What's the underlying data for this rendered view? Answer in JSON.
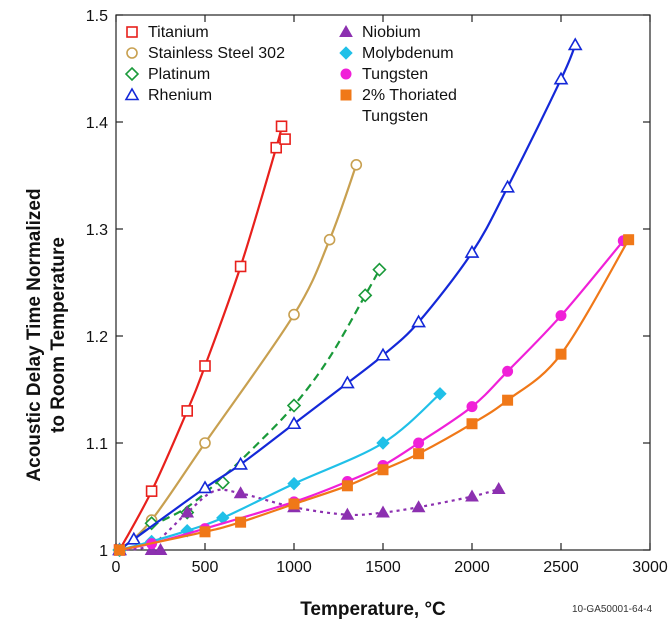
{
  "chart_data": {
    "type": "line",
    "xlabel": "Temperature, °C",
    "ylabel": [
      "Acoustic Delay Time Normalized",
      "to Room Temperature"
    ],
    "xlim": [
      0,
      3000
    ],
    "ylim": [
      1.0,
      1.5
    ],
    "xticks": [
      0,
      500,
      1000,
      1500,
      2000,
      2500,
      3000
    ],
    "yticks": [
      1,
      1.1,
      1.2,
      1.3,
      1.4,
      1.5
    ],
    "xtick_labels": [
      "0",
      "500",
      "1000",
      "1500",
      "2000",
      "2500",
      "3000"
    ],
    "ytick_labels": [
      "1",
      "1.1",
      "1.2",
      "1.3",
      "1.4",
      "1.5"
    ],
    "grid": false,
    "legend_position": "top-left",
    "figure_code": "10-GA50001-64-4",
    "series": [
      {
        "name": "Titanium",
        "color": "#e8201c",
        "marker": "square-open",
        "line": "solid",
        "points": [
          [
            20,
            1.0
          ],
          [
            200,
            1.055
          ],
          [
            400,
            1.13
          ],
          [
            500,
            1.172
          ],
          [
            700,
            1.265
          ],
          [
            900,
            1.376
          ],
          [
            930,
            1.396
          ],
          [
            950,
            1.384
          ]
        ],
        "curve": [
          [
            20,
            1.0
          ],
          [
            200,
            1.055
          ],
          [
            400,
            1.13
          ],
          [
            500,
            1.172
          ],
          [
            700,
            1.265
          ],
          [
            900,
            1.376
          ],
          [
            930,
            1.395
          ]
        ]
      },
      {
        "name": "Stainless Steel 302",
        "color": "#c8a050",
        "marker": "circle-open",
        "line": "solid",
        "points": [
          [
            20,
            1.0
          ],
          [
            200,
            1.028
          ],
          [
            500,
            1.1
          ],
          [
            1000,
            1.22
          ],
          [
            1200,
            1.29
          ],
          [
            1350,
            1.36
          ]
        ],
        "curve": [
          [
            20,
            1.0
          ],
          [
            200,
            1.028
          ],
          [
            500,
            1.1
          ],
          [
            1000,
            1.22
          ],
          [
            1200,
            1.29
          ],
          [
            1350,
            1.36
          ]
        ]
      },
      {
        "name": "Platinum",
        "color": "#1a9a3a",
        "marker": "diamond-open",
        "line": "dashed",
        "points": [
          [
            20,
            1.0
          ],
          [
            200,
            1.025
          ],
          [
            400,
            1.035
          ],
          [
            600,
            1.063
          ],
          [
            1000,
            1.135
          ],
          [
            1400,
            1.238
          ],
          [
            1480,
            1.262
          ]
        ],
        "curve": [
          [
            20,
            1.0
          ],
          [
            200,
            1.022
          ],
          [
            400,
            1.04
          ],
          [
            600,
            1.068
          ],
          [
            800,
            1.1
          ],
          [
            1000,
            1.135
          ],
          [
            1200,
            1.18
          ],
          [
            1400,
            1.238
          ],
          [
            1480,
            1.262
          ]
        ]
      },
      {
        "name": "Rhenium",
        "color": "#1428d8",
        "marker": "triangle-open",
        "line": "solid",
        "points": [
          [
            20,
            1.0
          ],
          [
            100,
            1.01
          ],
          [
            500,
            1.058
          ],
          [
            700,
            1.08
          ],
          [
            1000,
            1.118
          ],
          [
            1300,
            1.156
          ],
          [
            1500,
            1.182
          ],
          [
            1700,
            1.213
          ],
          [
            2000,
            1.278
          ],
          [
            2200,
            1.339
          ],
          [
            2500,
            1.44
          ],
          [
            2580,
            1.472
          ]
        ],
        "curve": [
          [
            20,
            1.0
          ],
          [
            100,
            1.01
          ],
          [
            500,
            1.058
          ],
          [
            700,
            1.08
          ],
          [
            1000,
            1.118
          ],
          [
            1300,
            1.156
          ],
          [
            1500,
            1.182
          ],
          [
            1700,
            1.213
          ],
          [
            2000,
            1.278
          ],
          [
            2200,
            1.339
          ],
          [
            2500,
            1.44
          ],
          [
            2580,
            1.472
          ]
        ]
      },
      {
        "name": "Niobium",
        "color": "#8c30b0",
        "marker": "triangle-filled",
        "line": "dotted",
        "points": [
          [
            20,
            1.0
          ],
          [
            200,
            1.0
          ],
          [
            250,
            1.0
          ],
          [
            400,
            1.035
          ],
          [
            700,
            1.053
          ],
          [
            1000,
            1.04
          ],
          [
            1300,
            1.033
          ],
          [
            1500,
            1.035
          ],
          [
            1700,
            1.04
          ],
          [
            2000,
            1.05
          ],
          [
            2150,
            1.057
          ]
        ],
        "curve": [
          [
            20,
            1.0
          ],
          [
            200,
            1.005
          ],
          [
            400,
            1.035
          ],
          [
            550,
            1.055
          ],
          [
            700,
            1.053
          ],
          [
            1000,
            1.04
          ],
          [
            1300,
            1.033
          ],
          [
            1500,
            1.035
          ],
          [
            1700,
            1.04
          ],
          [
            2000,
            1.05
          ],
          [
            2150,
            1.057
          ]
        ]
      },
      {
        "name": "Molybdenum",
        "color": "#20c0e8",
        "marker": "diamond-filled",
        "line": "solid",
        "points": [
          [
            20,
            1.0
          ],
          [
            200,
            1.008
          ],
          [
            400,
            1.018
          ],
          [
            600,
            1.03
          ],
          [
            1000,
            1.062
          ],
          [
            1500,
            1.1
          ],
          [
            1820,
            1.146
          ]
        ],
        "curve": [
          [
            20,
            1.0
          ],
          [
            200,
            1.008
          ],
          [
            400,
            1.018
          ],
          [
            600,
            1.03
          ],
          [
            1000,
            1.062
          ],
          [
            1500,
            1.1
          ],
          [
            1820,
            1.146
          ]
        ]
      },
      {
        "name": "Tungsten",
        "color": "#f020d8",
        "marker": "circle-filled",
        "line": "solid",
        "points": [
          [
            20,
            1.0
          ],
          [
            200,
            1.006
          ],
          [
            500,
            1.02
          ],
          [
            1000,
            1.045
          ],
          [
            1300,
            1.064
          ],
          [
            1500,
            1.079
          ],
          [
            1700,
            1.1
          ],
          [
            2000,
            1.134
          ],
          [
            2200,
            1.167
          ],
          [
            2500,
            1.219
          ],
          [
            2850,
            1.289
          ]
        ],
        "curve": [
          [
            20,
            1.0
          ],
          [
            200,
            1.006
          ],
          [
            500,
            1.02
          ],
          [
            1000,
            1.045
          ],
          [
            1300,
            1.064
          ],
          [
            1500,
            1.079
          ],
          [
            1700,
            1.1
          ],
          [
            2000,
            1.134
          ],
          [
            2200,
            1.167
          ],
          [
            2500,
            1.219
          ],
          [
            2850,
            1.289
          ]
        ]
      },
      {
        "name": "2% Thoriated Tungsten",
        "color": "#f07818",
        "marker": "square-filled",
        "line": "solid",
        "points": [
          [
            20,
            1.0
          ],
          [
            500,
            1.017
          ],
          [
            700,
            1.026
          ],
          [
            1000,
            1.043
          ],
          [
            1300,
            1.06
          ],
          [
            1500,
            1.075
          ],
          [
            1700,
            1.09
          ],
          [
            2000,
            1.118
          ],
          [
            2200,
            1.14
          ],
          [
            2500,
            1.183
          ],
          [
            2880,
            1.29
          ]
        ],
        "curve": [
          [
            20,
            1.0
          ],
          [
            500,
            1.017
          ],
          [
            700,
            1.026
          ],
          [
            1000,
            1.043
          ],
          [
            1300,
            1.06
          ],
          [
            1500,
            1.075
          ],
          [
            1700,
            1.09
          ],
          [
            2000,
            1.118
          ],
          [
            2200,
            1.14
          ],
          [
            2500,
            1.183
          ],
          [
            2880,
            1.29
          ]
        ]
      }
    ],
    "legend_columns": [
      [
        "Titanium",
        "Stainless Steel 302",
        "Platinum",
        "Rhenium"
      ],
      [
        "Niobium",
        "Molybdenum",
        "Tungsten",
        "2% Thoriated Tungsten"
      ]
    ],
    "legend_wrapped_lines": {
      "2% Thoriated Tungsten": [
        "2% Thoriated",
        "Tungsten"
      ]
    }
  }
}
